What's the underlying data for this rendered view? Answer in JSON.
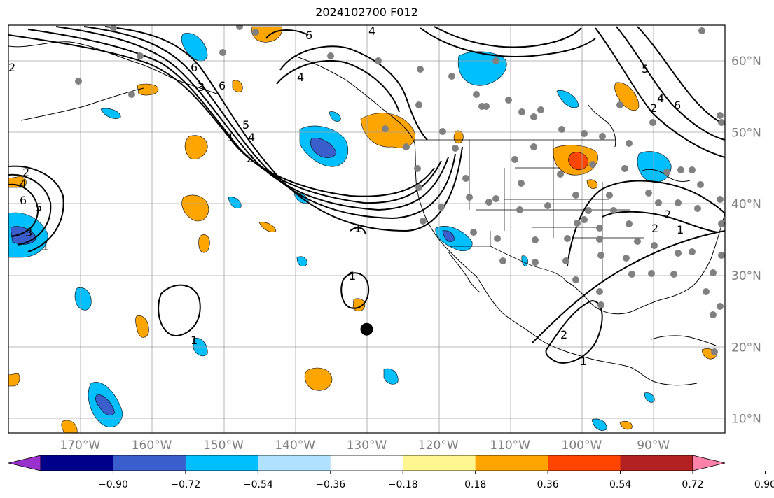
{
  "title": "2024102700 F012",
  "lon_labels": [
    {
      "lon": -170,
      "text": "170°W"
    },
    {
      "lon": -160,
      "text": "160°W"
    },
    {
      "lon": -150,
      "text": "150°W"
    },
    {
      "lon": -140,
      "text": "140°W"
    },
    {
      "lon": -130,
      "text": "130°W"
    },
    {
      "lon": -120,
      "text": "120°W"
    },
    {
      "lon": -110,
      "text": "110°W"
    },
    {
      "lon": -100,
      "text": "100°W"
    },
    {
      "lon": -90,
      "text": "90°W"
    }
  ],
  "lat_labels": [
    {
      "lat": 60,
      "text": "60°N"
    },
    {
      "lat": 50,
      "text": "50°N"
    },
    {
      "lat": 40,
      "text": "40°N"
    },
    {
      "lat": 30,
      "text": "30°N"
    },
    {
      "lat": 20,
      "text": "20°N"
    },
    {
      "lat": 10,
      "text": "10°N"
    }
  ],
  "map_extent": {
    "lon_min": -180,
    "lon_max": -80,
    "lat_min": 8,
    "lat_max": 65
  },
  "colorbar": {
    "colors": [
      "#9932cc",
      "#00008b",
      "#3a5fcd",
      "#00bfff",
      "#b0e2ff",
      "#ffffff",
      "#fff68f",
      "#ffa500",
      "#ff4500",
      "#b22222",
      "#ff82ab"
    ],
    "ticks": [
      "−0.90",
      "−0.72",
      "−0.54",
      "−0.36",
      "−0.18",
      "0.18",
      "0.36",
      "0.54",
      "0.72",
      "0.90"
    ]
  },
  "contour_labels": [
    "6",
    "4",
    "4",
    "6",
    "6",
    "5",
    "4",
    "2",
    "1",
    "1",
    "2",
    "3",
    "4",
    "5",
    "6",
    "2",
    "4",
    "6",
    "5",
    "3",
    "1",
    "2",
    "1",
    "1",
    "2",
    "2",
    "1",
    "2",
    "1"
  ],
  "marker": {
    "lon": -130,
    "lat": 22.5,
    "color": "#000000"
  }
}
